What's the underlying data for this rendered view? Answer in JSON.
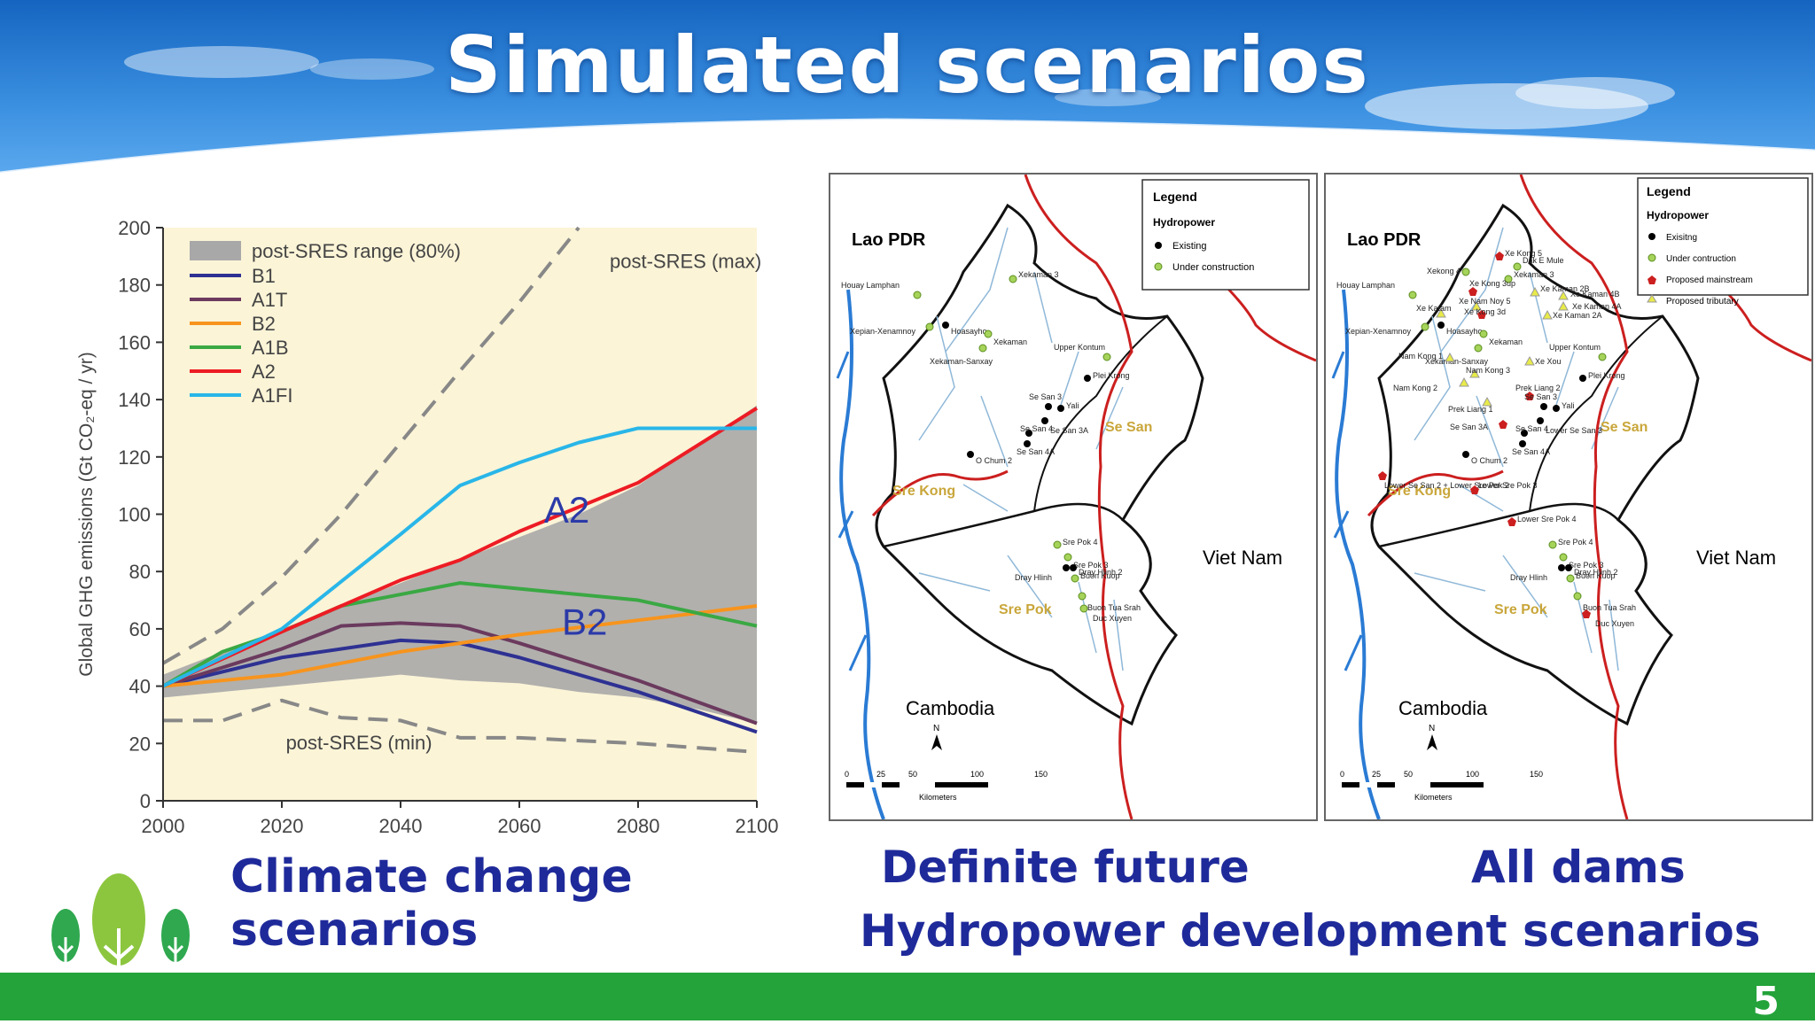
{
  "slide": {
    "title": "Simulated scenarios",
    "page_number": "5"
  },
  "captions": {
    "climate": [
      "Climate change",
      "scenarios"
    ],
    "definite": "Definite future",
    "all_dams": "All dams",
    "hydro": "Hydropower development scenarios"
  },
  "chart_data": {
    "type": "line",
    "title": "",
    "xlabel": "",
    "ylabel": "Global GHG emissions (Gt CO₂-eq / yr)",
    "xlim": [
      2000,
      2100
    ],
    "ylim": [
      0,
      200
    ],
    "xticks": [
      2000,
      2020,
      2040,
      2060,
      2080,
      2100
    ],
    "yticks": [
      0,
      20,
      40,
      60,
      80,
      100,
      120,
      140,
      160,
      180,
      200
    ],
    "grid": false,
    "legend_placement": "top-left",
    "band": {
      "name": "post-SRES range (80%)",
      "color": "#a8a8a8",
      "x": [
        2000,
        2010,
        2020,
        2030,
        2040,
        2050,
        2060,
        2070,
        2080,
        2090,
        2100
      ],
      "upper": [
        44,
        52,
        60,
        68,
        76,
        84,
        92,
        100,
        110,
        124,
        138
      ],
      "lower": [
        36,
        38,
        40,
        42,
        44,
        42,
        41,
        38,
        36,
        32,
        27
      ]
    },
    "series": [
      {
        "name": "B1",
        "color": "#2e3192",
        "x": [
          2000,
          2020,
          2040,
          2050,
          2060,
          2080,
          2100
        ],
        "y": [
          40,
          50,
          56,
          55,
          50,
          38,
          24
        ]
      },
      {
        "name": "A1T",
        "color": "#6b3a5e",
        "x": [
          2000,
          2020,
          2030,
          2040,
          2050,
          2060,
          2080,
          2100
        ],
        "y": [
          40,
          53,
          61,
          62,
          61,
          55,
          42,
          27
        ]
      },
      {
        "name": "B2",
        "color": "#f7941d",
        "x": [
          2000,
          2020,
          2040,
          2060,
          2080,
          2100
        ],
        "y": [
          40,
          44,
          52,
          58,
          63,
          68
        ]
      },
      {
        "name": "A1B",
        "color": "#3aa843",
        "x": [
          2000,
          2010,
          2020,
          2030,
          2040,
          2050,
          2060,
          2080,
          2100
        ],
        "y": [
          40,
          52,
          59,
          68,
          72,
          76,
          74,
          70,
          61
        ]
      },
      {
        "name": "A2",
        "color": "#ed1c24",
        "x": [
          2000,
          2020,
          2040,
          2050,
          2060,
          2080,
          2100
        ],
        "y": [
          40,
          59,
          77,
          84,
          94,
          111,
          137
        ]
      },
      {
        "name": "A1FI",
        "color": "#29b6e8",
        "x": [
          2000,
          2020,
          2040,
          2050,
          2060,
          2070,
          2080,
          2090,
          2100
        ],
        "y": [
          40,
          60,
          93,
          110,
          118,
          125,
          130,
          130,
          130
        ]
      }
    ],
    "dashed": [
      {
        "name": "post-SRES (max)",
        "color": "#888888",
        "x": [
          2000,
          2010,
          2020,
          2030,
          2040,
          2050,
          2060,
          2070
        ],
        "y": [
          48,
          60,
          78,
          100,
          125,
          150,
          174,
          200
        ]
      },
      {
        "name": "post-SRES (min)",
        "color": "#888888",
        "x": [
          2000,
          2010,
          2020,
          2030,
          2040,
          2050,
          2060,
          2080,
          2100
        ],
        "y": [
          28,
          28,
          35,
          29,
          28,
          22,
          22,
          20,
          17
        ]
      }
    ],
    "annotations": [
      {
        "text": "post-SRES (max)",
        "x": 2088,
        "y": 186
      },
      {
        "text": "post-SRES (min)",
        "x": 2033,
        "y": 18
      },
      {
        "text": "A2",
        "x": 2068,
        "y": 97
      },
      {
        "text": "B2",
        "x": 2071,
        "y": 58
      }
    ]
  },
  "maps": [
    {
      "id": "definite",
      "country_labels": [
        "Lao PDR",
        "Viet Nam",
        "Cambodia"
      ],
      "river_labels": [
        "Sre Kong",
        "Se San",
        "Sre Pok"
      ],
      "legend": {
        "title": "Legend",
        "subtitle": "Hydropower",
        "items": [
          "Existing",
          "Under construction"
        ]
      },
      "scale_labels": [
        "0",
        "25",
        "50",
        "100",
        "150"
      ],
      "scale_unit": "Kilometers",
      "north": "N",
      "sites": [
        "Xekaman 3",
        "Houay Lamphan",
        "Xepian-Xenamnoy",
        "Hoasayho",
        "Xekaman",
        "Xekaman-Sanxay",
        "Upper Kontum",
        "Plei Krong",
        "Se San 3",
        "Yali",
        "Se San 3A",
        "Se San 4",
        "Se San 4A",
        "O Chum 2",
        "Sre Pok 4",
        "Sre Pok 3",
        "Dray Hlinh 2",
        "Dray Hlinh",
        "Buon Kuop",
        "Buon Tua Srah",
        "Duc Xuyen"
      ]
    },
    {
      "id": "all",
      "country_labels": [
        "Lao PDR",
        "Viet Nam",
        "Cambodia"
      ],
      "river_labels": [
        "Sre Kong",
        "Se San",
        "Sre Pok"
      ],
      "legend": {
        "title": "Legend",
        "subtitle": "Hydropower",
        "items": [
          "Exisitng",
          "Under contruction",
          "Proposed mainstream",
          "Proposed tributary"
        ]
      },
      "scale_labels": [
        "0",
        "25",
        "50",
        "100",
        "150"
      ],
      "scale_unit": "Kilometers",
      "north": "N",
      "sites": [
        "Xe Kong 5",
        "Dak E Mule",
        "Xekong 4",
        "Xekaman 3",
        "Xe Kong 3up",
        "Xe Kaman 2B",
        "Xe Kaman 4B",
        "Houay Lamphan",
        "Xe Nam Noy 5",
        "Xe Kaman 4A",
        "Xe Katam",
        "Xe Kong 3d",
        "Xe Kaman 2A",
        "Xepian-Xenamnoy",
        "Hoasayho",
        "Xekaman",
        "Xekaman-Sanxay",
        "Nam Kong 1",
        "Xe Xou",
        "Upper Kontum",
        "Nam Kong 3",
        "Nam Kong 2",
        "Plei Krong",
        "Prek Liang 2",
        "Prek Liang 1",
        "Se San 3",
        "Yali",
        "Se San 3A",
        "Lower Se San 3",
        "Se San 4",
        "Se San 4A",
        "O Chum 2",
        "Lower Se San 2 + Lower Sre Pok 2",
        "Lower Sre Pok 3",
        "Lower Sre Pok 4",
        "Sre Pok 4",
        "Sre Pok 3",
        "Dray Hlinh 2",
        "Dray Hlinh",
        "Buon Kuop",
        "Buon Tua Srah",
        "Duc Xuyen"
      ]
    }
  ]
}
